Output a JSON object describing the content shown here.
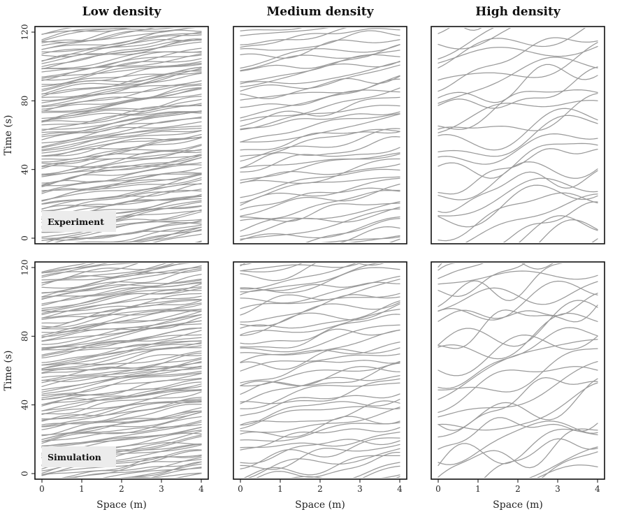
{
  "chart_data": {
    "type": "line",
    "description_note": "",
    "column_titles": [
      "Low density",
      "Medium density",
      "High density"
    ],
    "row_badges": [
      "Experiment",
      "Simulation"
    ],
    "xlabel": "Space (m)",
    "ylabel": "Time (s)",
    "xlim": [
      0,
      4
    ],
    "ylim": [
      0,
      120
    ],
    "x_ticks": [
      "0",
      "1",
      "2",
      "3",
      "4"
    ],
    "y_ticks": [
      "0",
      "40",
      "80",
      "120"
    ],
    "grid": false,
    "panels": [
      {
        "row": "Experiment",
        "column": "Low density",
        "trajectory_count": 100,
        "crossing_time_s": 13,
        "wave_amplitude_s": 1.5,
        "step": 1.2
      },
      {
        "row": "Experiment",
        "column": "Medium density",
        "trajectory_count": 44,
        "crossing_time_s": 14,
        "wave_amplitude_s": 2.5,
        "step": 2.9
      },
      {
        "row": "Experiment",
        "column": "High density",
        "trajectory_count": 26,
        "crossing_time_s": 20,
        "wave_amplitude_s": 6,
        "step": 5.2
      },
      {
        "row": "Simulation",
        "column": "Low density",
        "trajectory_count": 100,
        "crossing_time_s": 13,
        "wave_amplitude_s": 1.5,
        "step": 1.2
      },
      {
        "row": "Simulation",
        "column": "Medium density",
        "trajectory_count": 44,
        "crossing_time_s": 14,
        "wave_amplitude_s": 3,
        "step": 2.9
      },
      {
        "row": "Simulation",
        "column": "High density",
        "trajectory_count": 26,
        "crossing_time_s": 22,
        "wave_amplitude_s": 7,
        "step": 5.2
      }
    ]
  }
}
